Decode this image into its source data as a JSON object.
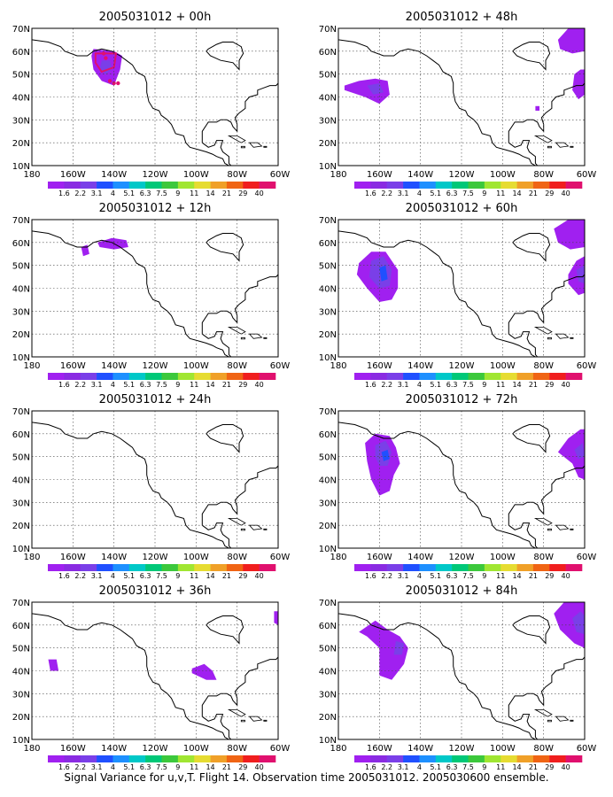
{
  "caption": "Signal Variance for u,v,T. Flight 14. Observation time 2005031012. 2005030600 ensemble.",
  "x_ticks": [
    "180",
    "160W",
    "140W",
    "120W",
    "100W",
    "80W",
    "60W"
  ],
  "y_ticks": [
    "70N",
    "60N",
    "50N",
    "40N",
    "30N",
    "20N",
    "10N"
  ],
  "colorbar": {
    "labels": [
      "1.6",
      "2.2",
      "3.1",
      "4",
      "5.1",
      "6.3",
      "7.5",
      "9",
      "11",
      "14",
      "21",
      "29",
      "40"
    ],
    "colors": [
      "#a020f0",
      "#8a2be2",
      "#7a3fe8",
      "#2050ff",
      "#1e90ff",
      "#00c8c8",
      "#00c878",
      "#3cc83c",
      "#a0e632",
      "#e6dc32",
      "#f0a028",
      "#f06414",
      "#f01e1e",
      "#e0106e"
    ]
  },
  "chart_data": [
    {
      "type": "heatmap",
      "map_type": "filled contour over North America coastlines",
      "title": "2005031012 + 00h",
      "x_range": [
        -180,
        -60
      ],
      "y_range": [
        10,
        70
      ],
      "grid": true,
      "features": [
        {
          "color": "#a020f0",
          "region": [
            [
              -150,
              61
            ],
            [
              -140,
              60
            ],
            [
              -136,
              58
            ],
            [
              -137,
              52
            ],
            [
              -140,
              45
            ],
            [
              -146,
              47
            ],
            [
              -150,
              52
            ],
            [
              -151,
              58
            ]
          ]
        },
        {
          "color": "#7a3fe8",
          "region": [
            [
              -146,
              56
            ],
            [
              -142,
              56
            ],
            [
              -141,
              52
            ],
            [
              -144,
              50
            ],
            [
              -147,
              52
            ]
          ]
        },
        {
          "color": "#e0106e",
          "region": [
            [
              -149,
              59
            ],
            [
              -139,
              59
            ],
            [
              -140,
              53
            ],
            [
              -146,
              51
            ],
            [
              -149,
              55
            ]
          ],
          "style": "outline"
        },
        {
          "color": "#e0106e",
          "points": [
            [
              -138,
              46
            ],
            [
              -140,
              46
            ],
            [
              -142,
              47
            ],
            [
              -144,
              57
            ],
            [
              -145,
              59
            ]
          ],
          "style": "dots"
        }
      ]
    },
    {
      "type": "heatmap",
      "map_type": "filled contour over North America coastlines",
      "title": "2005031012 + 48h",
      "x_range": [
        -180,
        -60
      ],
      "y_range": [
        10,
        70
      ],
      "grid": true,
      "features": [
        {
          "color": "#a020f0",
          "region": [
            [
              -177,
              45
            ],
            [
              -170,
              47
            ],
            [
              -162,
              48
            ],
            [
              -156,
              47
            ],
            [
              -155,
              41
            ],
            [
              -160,
              37
            ],
            [
              -167,
              40
            ],
            [
              -177,
              43
            ]
          ]
        },
        {
          "color": "#7a3fe8",
          "region": [
            [
              -166,
              45
            ],
            [
              -160,
              46
            ],
            [
              -158,
              42
            ],
            [
              -163,
              41
            ]
          ]
        },
        {
          "color": "#a020f0",
          "region": [
            [
              -73,
              65
            ],
            [
              -68,
              70
            ],
            [
              -60,
              70
            ],
            [
              -60,
              60
            ],
            [
              -66,
              59
            ],
            [
              -72,
              61
            ]
          ]
        },
        {
          "color": "#a020f0",
          "region": [
            [
              -65,
              50
            ],
            [
              -62,
              52
            ],
            [
              -60,
              52
            ],
            [
              -60,
              41
            ],
            [
              -63,
              39
            ],
            [
              -66,
              43
            ]
          ]
        },
        {
          "color": "#a020f0",
          "region": [
            [
              -84,
              36
            ],
            [
              -82,
              36
            ],
            [
              -82,
              34
            ],
            [
              -84,
              34
            ]
          ]
        }
      ]
    },
    {
      "type": "heatmap",
      "map_type": "filled contour over North America coastlines",
      "title": "2005031012 + 12h",
      "x_range": [
        -180,
        -60
      ],
      "y_range": [
        10,
        70
      ],
      "grid": true,
      "features": [
        {
          "color": "#a020f0",
          "region": [
            [
              -148,
              60
            ],
            [
              -141,
              62
            ],
            [
              -134,
              61
            ],
            [
              -133,
              58
            ],
            [
              -140,
              57
            ],
            [
              -147,
              58
            ]
          ]
        },
        {
          "color": "#a020f0",
          "region": [
            [
              -156,
              58
            ],
            [
              -153,
              59
            ],
            [
              -152,
              55
            ],
            [
              -155,
              54
            ]
          ]
        }
      ]
    },
    {
      "type": "heatmap",
      "map_type": "filled contour over North America coastlines",
      "title": "2005031012 + 60h",
      "x_range": [
        -180,
        -60
      ],
      "y_range": [
        10,
        70
      ],
      "grid": true,
      "features": [
        {
          "color": "#a020f0",
          "region": [
            [
              -170,
              51
            ],
            [
              -164,
              56
            ],
            [
              -157,
              56
            ],
            [
              -151,
              48
            ],
            [
              -151,
              40
            ],
            [
              -154,
              35
            ],
            [
              -160,
              34
            ],
            [
              -166,
              40
            ],
            [
              -171,
              46
            ]
          ]
        },
        {
          "color": "#7a3fe8",
          "region": [
            [
              -164,
              52
            ],
            [
              -158,
              54
            ],
            [
              -154,
              48
            ],
            [
              -155,
              41
            ],
            [
              -160,
              40
            ],
            [
              -165,
              45
            ]
          ]
        },
        {
          "color": "#2050ff",
          "region": [
            [
              -160,
              49
            ],
            [
              -157,
              50
            ],
            [
              -156,
              44
            ],
            [
              -159,
              43
            ]
          ]
        },
        {
          "color": "#a020f0",
          "region": [
            [
              -75,
              66
            ],
            [
              -68,
              70
            ],
            [
              -60,
              70
            ],
            [
              -60,
              58
            ],
            [
              -67,
              57
            ],
            [
              -73,
              60
            ]
          ]
        },
        {
          "color": "#a020f0",
          "region": [
            [
              -68,
              46
            ],
            [
              -64,
              52
            ],
            [
              -60,
              54
            ],
            [
              -60,
              38
            ],
            [
              -63,
              37
            ],
            [
              -68,
              42
            ]
          ]
        },
        {
          "color": "#7a3fe8",
          "region": [
            [
              -64,
              48
            ],
            [
              -60,
              50
            ],
            [
              -60,
              42
            ],
            [
              -63,
              43
            ]
          ]
        }
      ]
    },
    {
      "type": "heatmap",
      "map_type": "filled contour over North America coastlines",
      "title": "2005031012 + 24h",
      "x_range": [
        -180,
        -60
      ],
      "y_range": [
        10,
        70
      ],
      "grid": true,
      "features": []
    },
    {
      "type": "heatmap",
      "map_type": "filled contour over North America coastlines",
      "title": "2005031012 + 72h",
      "x_range": [
        -180,
        -60
      ],
      "y_range": [
        10,
        70
      ],
      "grid": true,
      "features": [
        {
          "color": "#a020f0",
          "region": [
            [
              -167,
              56
            ],
            [
              -162,
              60
            ],
            [
              -155,
              59
            ],
            [
              -152,
              54
            ],
            [
              -150,
              47
            ],
            [
              -153,
              42
            ],
            [
              -155,
              35
            ],
            [
              -160,
              33
            ],
            [
              -164,
              40
            ],
            [
              -166,
              48
            ]
          ]
        },
        {
          "color": "#7a3fe8",
          "region": [
            [
              -162,
              55
            ],
            [
              -157,
              57
            ],
            [
              -154,
              52
            ],
            [
              -156,
              46
            ],
            [
              -160,
              46
            ],
            [
              -162,
              50
            ]
          ]
        },
        {
          "color": "#2050ff",
          "region": [
            [
              -159,
              52
            ],
            [
              -156,
              53
            ],
            [
              -155,
              49
            ],
            [
              -158,
              48
            ]
          ]
        },
        {
          "color": "#a020f0",
          "region": [
            [
              -73,
              52
            ],
            [
              -68,
              58
            ],
            [
              -62,
              62
            ],
            [
              -60,
              62
            ],
            [
              -60,
              40
            ],
            [
              -63,
              41
            ],
            [
              -66,
              47
            ]
          ]
        },
        {
          "color": "#7a3fe8",
          "region": [
            [
              -65,
              53
            ],
            [
              -61,
              56
            ],
            [
              -60,
              50
            ],
            [
              -63,
              49
            ]
          ]
        }
      ]
    },
    {
      "type": "heatmap",
      "map_type": "filled contour over North America coastlines",
      "title": "2005031012 + 36h",
      "x_range": [
        -180,
        -60
      ],
      "y_range": [
        10,
        70
      ],
      "grid": true,
      "features": [
        {
          "color": "#a020f0",
          "region": [
            [
              -172,
              45
            ],
            [
              -168,
              45
            ],
            [
              -167,
              40
            ],
            [
              -171,
              40
            ]
          ]
        },
        {
          "color": "#a020f0",
          "region": [
            [
              -102,
              41
            ],
            [
              -96,
              43
            ],
            [
              -92,
              40
            ],
            [
              -90,
              36
            ],
            [
              -95,
              36
            ],
            [
              -102,
              39
            ]
          ]
        },
        {
          "color": "#a020f0",
          "region": [
            [
              -62,
              66
            ],
            [
              -60,
              66
            ],
            [
              -60,
              60
            ],
            [
              -62,
              61
            ]
          ]
        }
      ]
    },
    {
      "type": "heatmap",
      "map_type": "filled contour over North America coastlines",
      "title": "2005031012 + 84h",
      "x_range": [
        -180,
        -60
      ],
      "y_range": [
        10,
        70
      ],
      "grid": true,
      "features": [
        {
          "color": "#a020f0",
          "region": [
            [
              -170,
              57
            ],
            [
              -162,
              62
            ],
            [
              -156,
              58
            ],
            [
              -150,
              55
            ],
            [
              -146,
              50
            ],
            [
              -148,
              43
            ],
            [
              -154,
              36
            ],
            [
              -160,
              38
            ],
            [
              -160,
              50
            ],
            [
              -166,
              55
            ]
          ]
        },
        {
          "color": "#7a3fe8",
          "region": [
            [
              -152,
              53
            ],
            [
              -148,
              52
            ],
            [
              -149,
              47
            ],
            [
              -153,
              47
            ]
          ]
        },
        {
          "color": "#a020f0",
          "region": [
            [
              -75,
              65
            ],
            [
              -70,
              70
            ],
            [
              -60,
              70
            ],
            [
              -60,
              50
            ],
            [
              -65,
              52
            ],
            [
              -72,
              58
            ]
          ]
        },
        {
          "color": "#7a3fe8",
          "region": [
            [
              -66,
              63
            ],
            [
              -62,
              66
            ],
            [
              -60,
              64
            ],
            [
              -60,
              56
            ],
            [
              -64,
              57
            ]
          ]
        }
      ]
    }
  ]
}
